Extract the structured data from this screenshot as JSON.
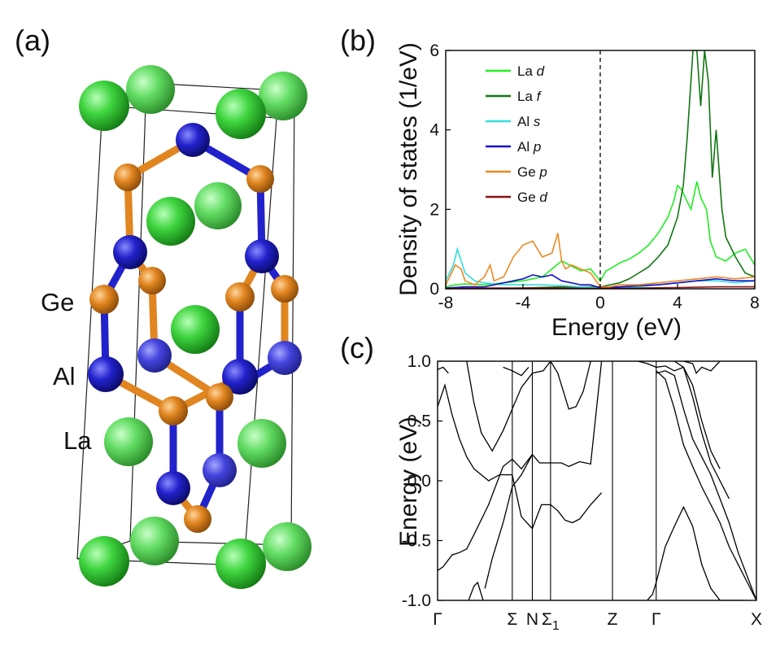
{
  "panels": {
    "a": "(a)",
    "b": "(b)",
    "c": "(c)"
  },
  "structure": {
    "element_labels": [
      "Ge",
      "Al",
      "La"
    ],
    "colors": {
      "La": "#33cc33",
      "Al": "#2222cc",
      "Ge": "#e0851f"
    }
  },
  "chart_data": [
    {
      "id": "dos",
      "type": "line",
      "xlabel": "Energy (eV)",
      "ylabel": "Density of states (1/eV)",
      "xlim": [
        -8,
        8
      ],
      "ylim": [
        0,
        6
      ],
      "xticks": [
        -8,
        -4,
        0,
        4,
        8
      ],
      "yticks": [
        0,
        2,
        4,
        6
      ],
      "fermi_level": 0,
      "legend": "top-left",
      "series": [
        {
          "name": "La d",
          "label": "La",
          "orb": "d",
          "color": "#22ee22",
          "x": [
            -8,
            -7.5,
            -7,
            -6,
            -5,
            -4,
            -3,
            -2,
            -1,
            -0.5,
            0,
            0.3,
            0.5,
            1,
            1.5,
            2,
            2.5,
            3,
            3.5,
            3.8,
            4,
            4.2,
            4.5,
            4.7,
            5,
            5.2,
            5.5,
            5.7,
            6,
            6.5,
            7,
            7.5,
            8
          ],
          "y": [
            0.05,
            0.1,
            0.12,
            0.1,
            0.15,
            0.2,
            0.3,
            0.7,
            0.45,
            0.5,
            0.2,
            0.45,
            0.5,
            0.65,
            0.75,
            0.9,
            1.1,
            1.4,
            1.8,
            2.2,
            2.6,
            2.5,
            2.2,
            2.0,
            2.7,
            2.3,
            2.0,
            1.2,
            0.8,
            0.7,
            0.9,
            1.0,
            0.6
          ]
        },
        {
          "name": "La f",
          "label": "La",
          "orb": "f",
          "color": "#117711",
          "x": [
            -8,
            -6,
            -4,
            -2,
            0,
            0.5,
            1,
            1.5,
            2,
            2.5,
            3,
            3.5,
            4,
            4.3,
            4.5,
            4.8,
            5,
            5.2,
            5.4,
            5.6,
            5.8,
            6,
            6.3,
            6.5,
            7,
            7.5,
            8
          ],
          "y": [
            0,
            0,
            0.02,
            0.05,
            0.05,
            0.1,
            0.15,
            0.25,
            0.4,
            0.55,
            0.8,
            1.1,
            1.8,
            2.6,
            3.8,
            6.0,
            6.0,
            4.6,
            6.0,
            5.2,
            2.8,
            4.0,
            2.0,
            1.3,
            0.8,
            0.4,
            0.3
          ]
        },
        {
          "name": "Al s",
          "label": "Al",
          "orb": "s",
          "color": "#33dddd",
          "x": [
            -8,
            -7.6,
            -7.4,
            -7,
            -6.5,
            -6,
            -5,
            -4,
            -3,
            -2,
            -1,
            0,
            1,
            2,
            3,
            4,
            5,
            6,
            7,
            8
          ],
          "y": [
            0.2,
            0.6,
            1.0,
            0.4,
            0.2,
            0.15,
            0.1,
            0.1,
            0.1,
            0.08,
            0.05,
            0.02,
            0.04,
            0.05,
            0.1,
            0.15,
            0.2,
            0.2,
            0.15,
            0.2
          ]
        },
        {
          "name": "Al p",
          "label": "Al",
          "orb": "p",
          "color": "#1111cc",
          "x": [
            -8,
            -7,
            -6,
            -5.5,
            -5,
            -4,
            -3.5,
            -3,
            -2.5,
            -2,
            -1.5,
            -1,
            -0.5,
            0,
            1,
            2,
            3,
            4,
            5,
            6,
            7,
            8
          ],
          "y": [
            0.02,
            0.05,
            0.05,
            0.1,
            0.15,
            0.25,
            0.35,
            0.3,
            0.35,
            0.2,
            0.15,
            0.1,
            0.1,
            0.02,
            0.05,
            0.08,
            0.1,
            0.15,
            0.2,
            0.25,
            0.2,
            0.2
          ]
        },
        {
          "name": "Ge p",
          "label": "Ge",
          "orb": "p",
          "color": "#ee8822",
          "x": [
            -8,
            -7.5,
            -7.2,
            -7,
            -6.5,
            -6,
            -5.7,
            -5.5,
            -5,
            -4.5,
            -4,
            -3.5,
            -3,
            -2.5,
            -2.2,
            -2,
            -1.8,
            -1.5,
            -1,
            -0.5,
            0,
            0.5,
            1,
            2,
            3,
            4,
            5,
            6,
            7,
            8
          ],
          "y": [
            0.1,
            0.6,
            0.5,
            0.2,
            0.1,
            0.3,
            0.6,
            0.2,
            0.3,
            0.8,
            1.1,
            1.2,
            0.8,
            0.9,
            1.4,
            0.7,
            0.5,
            0.6,
            0.5,
            0.4,
            0.05,
            0.05,
            0.1,
            0.1,
            0.15,
            0.2,
            0.25,
            0.3,
            0.25,
            0.3
          ]
        },
        {
          "name": "Ge d",
          "label": "Ge",
          "orb": "d",
          "color": "#881111",
          "x": [
            -8,
            -6,
            -4,
            -2,
            0,
            2,
            4,
            6,
            8
          ],
          "y": [
            0.01,
            0.02,
            0.02,
            0.02,
            0.01,
            0.02,
            0.03,
            0.05,
            0.05
          ]
        }
      ]
    },
    {
      "id": "bands",
      "type": "line",
      "ylabel": "Energy (eV)",
      "ylim": [
        -1.0,
        1.0
      ],
      "yticks": [
        -1.0,
        -0.5,
        0.0,
        0.5,
        1.0
      ],
      "ytick_labels": [
        "-1.0",
        "-0.5",
        "0.0",
        "0.5",
        "1.0"
      ],
      "kpath": [
        "Γ",
        "Σ",
        "N",
        "Σ",
        "Z",
        "Γ",
        "X"
      ],
      "kpath_sub": [
        "",
        "",
        "",
        "1",
        "",
        "",
        ""
      ],
      "kpos": [
        0,
        0.41,
        0.52,
        0.62,
        0.96,
        1.2,
        1.75
      ],
      "line_color": "#000000",
      "bands": [
        {
          "x": [
            0,
            0.03,
            0.08,
            0.12,
            0.16,
            0.2,
            0.28,
            0.36,
            0.41,
            0.46,
            0.52,
            0.56,
            0.62,
            0.68,
            0.72,
            0.78,
            0.84,
            0.9
          ],
          "y": [
            -0.75,
            -0.72,
            -0.62,
            -0.6,
            -0.57,
            -0.45,
            -0.2,
            0.12,
            0.18,
            0.1,
            0.22,
            0.15,
            0.15,
            0.15,
            0.12,
            0.16,
            0.14,
            1.0
          ]
        },
        {
          "x": [
            0,
            0.04,
            0.08,
            0.12,
            0.16,
            0.2,
            0.28,
            0.34,
            0.41,
            0.46,
            0.52,
            0.57,
            0.62,
            0.66,
            0.7,
            0.74,
            0.78,
            0.84,
            0.9
          ],
          "y": [
            0.62,
            0.8,
            0.55,
            0.35,
            0.2,
            0.1,
            0.0,
            0.05,
            0.05,
            -0.3,
            -0.4,
            -0.2,
            -0.2,
            -0.25,
            -0.33,
            -0.35,
            -0.32,
            -0.2,
            -0.1
          ]
        },
        {
          "x": [
            0.16,
            0.2,
            0.24,
            0.3,
            0.36,
            0.41,
            0.46,
            0.52,
            0.58,
            0.62
          ],
          "y": [
            1.0,
            0.65,
            0.4,
            0.25,
            0.42,
            0.6,
            0.78,
            0.9,
            0.92,
            1.0
          ]
        },
        {
          "x": [
            0.26,
            0.3,
            0.36,
            0.41,
            0.46,
            0.52
          ],
          "y": [
            -0.9,
            -0.65,
            -0.35,
            -0.05,
            0.05,
            0.22
          ]
        },
        {
          "x": [
            0.36,
            0.41,
            0.46,
            0.5
          ],
          "y": [
            0.95,
            0.92,
            0.88,
            0.95
          ]
        },
        {
          "x": [
            0.62,
            0.66,
            0.7,
            0.72,
            0.76,
            0.8,
            0.84
          ],
          "y": [
            1.0,
            0.9,
            0.7,
            0.6,
            0.62,
            0.75,
            1.0
          ]
        },
        {
          "x": [
            0.17,
            0.2,
            0.22,
            0.25
          ],
          "y": [
            -1.0,
            -0.88,
            -0.85,
            -1.0
          ]
        },
        {
          "x": [
            0,
            0.03,
            0.06
          ],
          "y": [
            0.93,
            0.95,
            0.9
          ]
        },
        {
          "x": [
            1.15,
            1.18,
            1.2,
            1.25,
            1.3,
            1.35,
            1.4,
            1.45,
            1.5,
            1.55,
            1.6,
            1.65,
            1.7
          ],
          "y": [
            -1.0,
            -0.95,
            -0.85,
            -0.55,
            -0.38,
            -0.22,
            -0.38,
            -0.7,
            -0.9,
            -1.0,
            -1.0,
            -1.0,
            -1.0
          ]
        },
        {
          "x": [
            1.2,
            1.25,
            1.3,
            1.35,
            1.4,
            1.45,
            1.5,
            1.55,
            1.6,
            1.65,
            1.7,
            1.75
          ],
          "y": [
            0.92,
            0.85,
            0.6,
            0.3,
            0.12,
            -0.05,
            -0.2,
            -0.35,
            -0.55,
            -0.7,
            -0.85,
            -1.0
          ]
        },
        {
          "x": [
            1.2,
            1.25,
            1.3,
            1.35,
            1.4,
            1.45,
            1.5,
            1.55,
            1.6,
            1.65,
            1.7,
            1.75
          ],
          "y": [
            0.9,
            0.92,
            0.88,
            0.6,
            0.35,
            0.2,
            0.05,
            -0.15,
            -0.35,
            -0.6,
            -0.8,
            -1.0
          ]
        },
        {
          "x": [
            1.1,
            1.15,
            1.2,
            1.25,
            1.3,
            1.35,
            1.4,
            1.45,
            1.5,
            1.55,
            1.6
          ],
          "y": [
            1.0,
            0.98,
            0.95,
            0.96,
            0.92,
            0.95,
            0.7,
            0.4,
            0.15,
            0.0,
            -0.15
          ]
        },
        {
          "x": [
            1.3,
            1.35,
            1.4,
            1.45,
            1.5,
            1.55
          ],
          "y": [
            1.0,
            0.95,
            0.8,
            0.5,
            0.25,
            0.1
          ]
        },
        {
          "x": [
            1.35,
            1.4,
            1.42,
            1.45,
            1.5,
            1.55
          ],
          "y": [
            1.0,
            0.98,
            0.9,
            0.95,
            0.92,
            1.0
          ]
        }
      ]
    }
  ]
}
